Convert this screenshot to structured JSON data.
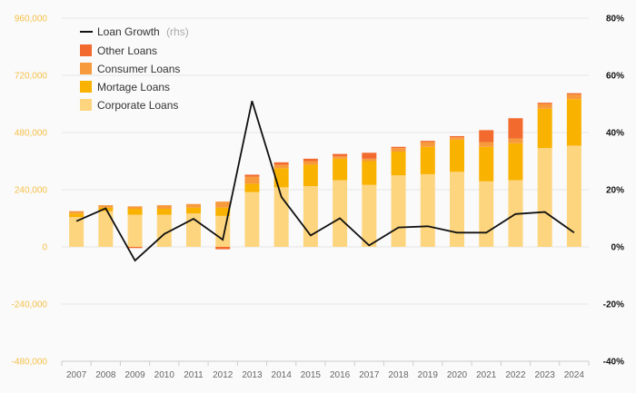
{
  "chart_data": {
    "type": "bar",
    "categories": [
      "2007",
      "2008",
      "2009",
      "2010",
      "2011",
      "2012",
      "2013",
      "2014",
      "2015",
      "2016",
      "2017",
      "2018",
      "2019",
      "2020",
      "2021",
      "2022",
      "2023",
      "2024"
    ],
    "series": [
      {
        "name": "Corporate Loans",
        "kind": "bar",
        "color": "#fdd57e",
        "values": [
          125000,
          150000,
          135000,
          135000,
          140000,
          130000,
          230000,
          250000,
          255000,
          280000,
          260000,
          300000,
          305000,
          315000,
          275000,
          280000,
          415000,
          425000
        ]
      },
      {
        "name": "Mortage Loans",
        "kind": "bar",
        "color": "#f9b200",
        "values": [
          15000,
          15000,
          25000,
          25000,
          25000,
          35000,
          35000,
          80000,
          90000,
          90000,
          100000,
          100000,
          115000,
          135000,
          145000,
          155000,
          165000,
          195000
        ]
      },
      {
        "name": "Consumer Loans",
        "kind": "bar",
        "color": "#f79a3e",
        "values": [
          10000,
          10000,
          10000,
          15000,
          15000,
          25000,
          30000,
          15000,
          15000,
          10000,
          10000,
          15000,
          20000,
          10000,
          20000,
          20000,
          20000,
          20000
        ]
      },
      {
        "name": "Other Loans",
        "kind": "bar",
        "color": "#f26a2e",
        "values": [
          0,
          0,
          -5000,
          0,
          0,
          -10000,
          8000,
          10000,
          10000,
          10000,
          25000,
          5000,
          5000,
          5000,
          50000,
          85000,
          5000,
          5000
        ]
      },
      {
        "name": "Loan Growth",
        "name_suffix": "(rhs)",
        "kind": "line",
        "axis": "right",
        "color": "#111111",
        "values": [
          0.09,
          0.135,
          -0.048,
          0.045,
          0.098,
          0.025,
          0.51,
          0.175,
          0.04,
          0.1,
          0.005,
          0.068,
          0.072,
          0.05,
          0.05,
          0.115,
          0.122,
          0.05
        ]
      }
    ],
    "ylim_left": [
      -480000,
      960000
    ],
    "ylim_right": [
      -0.4,
      0.8
    ],
    "left_ticks": [
      "960,000",
      "720,000",
      "480,000",
      "240,000",
      "0",
      "-240,000",
      "-480,000"
    ],
    "right_ticks": [
      "80%",
      "60%",
      "40%",
      "20%",
      "0%",
      "-20%",
      "-40%"
    ],
    "grid": true,
    "legend_position": "top-left",
    "stacked": true
  },
  "colors": {
    "left_axis": "#f5c04a",
    "right_axis": "#111111",
    "grid": "#e6e6e6"
  }
}
